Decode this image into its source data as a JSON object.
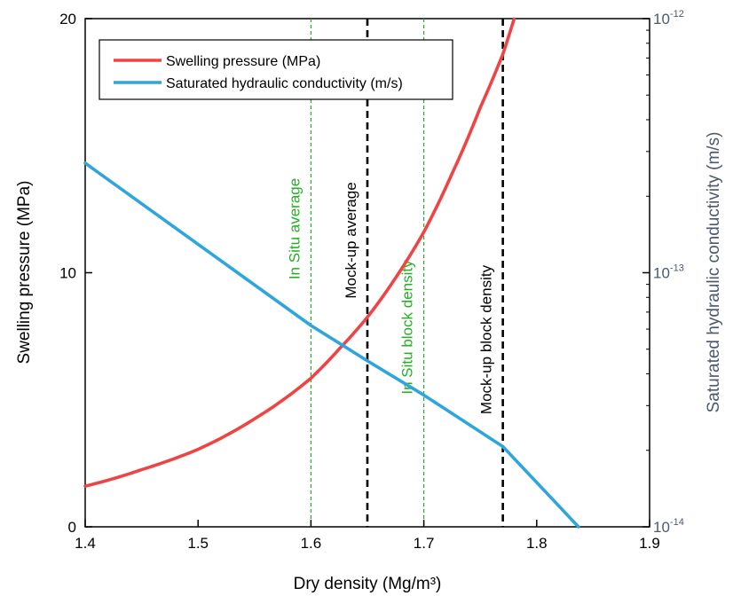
{
  "chart_data": {
    "type": "line",
    "xlabel": "Dry density (Mg/m³)",
    "ylabel": "Swelling pressure (MPa)",
    "y2label": "Saturated hydraulic conductivity (m/s)",
    "xlim": [
      1.4,
      1.9
    ],
    "ylim": [
      0,
      20
    ],
    "y2lim": [
      1e-14,
      1e-12
    ],
    "y2scale": "log",
    "xticks": [
      1.4,
      1.5,
      1.6,
      1.7,
      1.8,
      1.9
    ],
    "xtick_labels": [
      "1.4",
      "1.5",
      "1.6",
      "1.7",
      "1.8",
      "1.9"
    ],
    "yticks": [
      0,
      10,
      20
    ],
    "ytick_labels": [
      "0",
      "10",
      "20"
    ],
    "y2ticks": [
      {
        "value": 1e-14,
        "base": "10",
        "exp": "-14"
      },
      {
        "value": 1e-13,
        "base": "10",
        "exp": "-13"
      },
      {
        "value": 1e-12,
        "base": "10",
        "exp": "-12"
      }
    ],
    "grid": false,
    "legend_position": "top-left",
    "series": [
      {
        "name": "Swelling pressure (MPa)",
        "axis": "left",
        "color": "#ef4444",
        "x": [
          1.4,
          1.45,
          1.5,
          1.55,
          1.6,
          1.625,
          1.65,
          1.675,
          1.7,
          1.725,
          1.75,
          1.77,
          1.78
        ],
        "y": [
          1.6,
          2.25,
          3.05,
          4.25,
          5.85,
          7.0,
          8.25,
          9.8,
          11.6,
          13.9,
          16.5,
          18.6,
          19.99
        ]
      },
      {
        "name": "Saturated hydraulic conductivity (m/s)",
        "axis": "right",
        "color": "#2ea6dc",
        "x": [
          1.4,
          1.6,
          1.65,
          1.7,
          1.77,
          1.837
        ],
        "y": [
          2.7e-13,
          6.2e-14,
          4.5e-14,
          3.3e-14,
          2.07e-14,
          1e-14
        ]
      }
    ],
    "vlines": [
      {
        "x": 1.6,
        "label": "In Situ average",
        "color": "#22b022",
        "style": "thin-dashed"
      },
      {
        "x": 1.65,
        "label": "Mock-up average",
        "color": "#000000",
        "style": "thick-dashed"
      },
      {
        "x": 1.7,
        "label": "In Situ block density",
        "color": "#22b022",
        "style": "thin-dashed"
      },
      {
        "x": 1.77,
        "label": "Mock-up block density",
        "color": "#000000",
        "style": "thick-dashed"
      }
    ],
    "colors": {
      "left_axis": "#000000",
      "right_axis": "#4a5a6e"
    }
  }
}
